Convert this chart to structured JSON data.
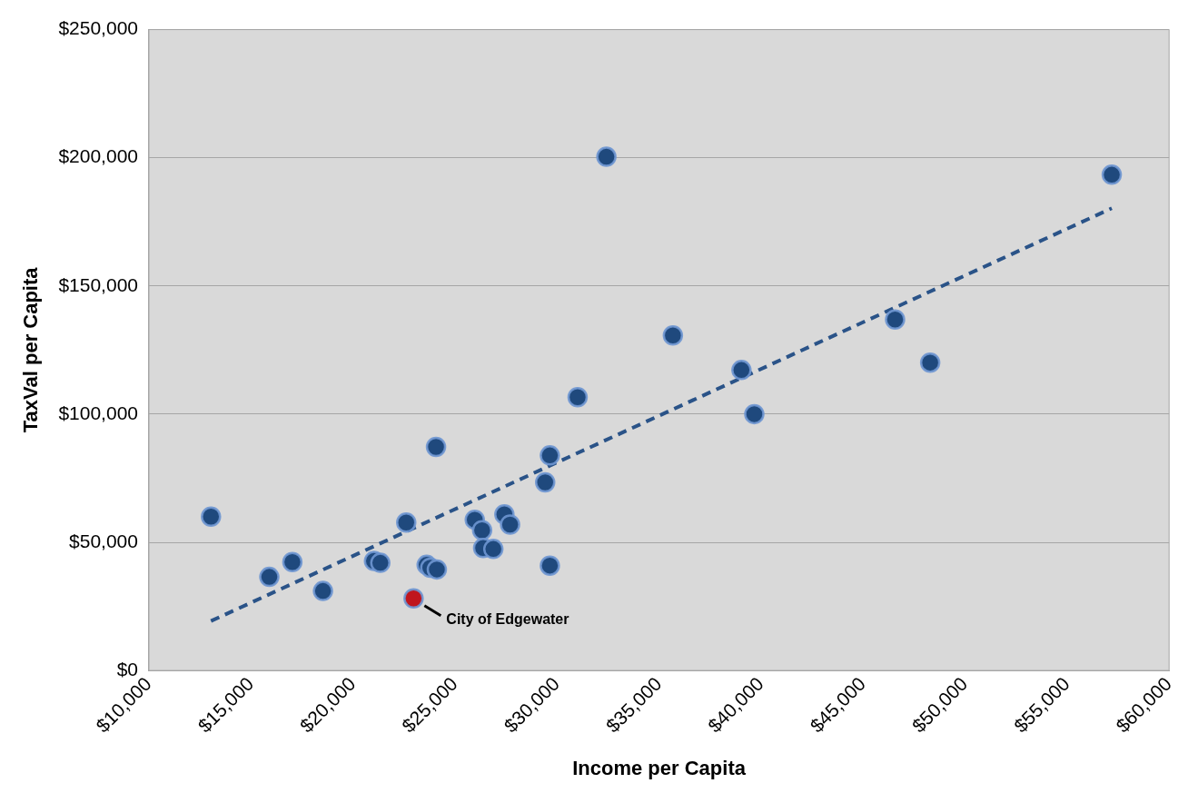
{
  "chart_data": {
    "type": "scatter",
    "xlabel": "Income per Capita",
    "ylabel": "TaxVal per Capita",
    "xlim": [
      10000,
      60000
    ],
    "xticks": [
      {
        "value": 10000,
        "label": "$10,000"
      },
      {
        "value": 15000,
        "label": "$15,000"
      },
      {
        "value": 20000,
        "label": "$20,000"
      },
      {
        "value": 25000,
        "label": "$25,000"
      },
      {
        "value": 30000,
        "label": "$30,000"
      },
      {
        "value": 35000,
        "label": "$35,000"
      },
      {
        "value": 40000,
        "label": "$40,000"
      },
      {
        "value": 45000,
        "label": "$45,000"
      },
      {
        "value": 50000,
        "label": "$50,000"
      },
      {
        "value": 55000,
        "label": "$55,000"
      },
      {
        "value": 60000,
        "label": "$60,000"
      }
    ],
    "ylim": [
      0,
      250000
    ],
    "yticks": [
      {
        "value": 0,
        "label": "$0"
      },
      {
        "value": 50000,
        "label": "$50,000"
      },
      {
        "value": 100000,
        "label": "$100,000"
      },
      {
        "value": 150000,
        "label": "$150,000"
      },
      {
        "value": 200000,
        "label": "$200,000"
      },
      {
        "value": 250000,
        "label": "$250,000"
      }
    ],
    "grid": "y",
    "legend": false,
    "marker": "circle",
    "series": [
      {
        "color": "#1f497d",
        "x": [
          13040,
          15900,
          17030,
          18530,
          21030,
          21340,
          22610,
          23610,
          23790,
          24110,
          24070,
          25970,
          26330,
          26380,
          26880,
          27420,
          27700,
          29420,
          29650,
          29650,
          31010,
          32420,
          35680,
          39040,
          39670,
          46570,
          48290,
          57190
        ],
        "values": [
          60000,
          36500,
          42300,
          31000,
          42700,
          42000,
          57700,
          41200,
          40100,
          39400,
          87200,
          58800,
          54700,
          47800,
          47400,
          60900,
          56900,
          73400,
          83900,
          40900,
          106600,
          200400,
          130700,
          117200,
          100000,
          136900,
          120100,
          193400
        ]
      },
      {
        "color": "#c0161d",
        "x": [
          22970
        ],
        "values": [
          28100
        ]
      },
      {
        "type": "line",
        "color": "#2a5388",
        "line_style": "dashed",
        "marker": "none",
        "x": [
          13040,
          57190
        ],
        "values": [
          19300,
          180300
        ]
      }
    ],
    "annotations": [
      {
        "text": "City of Edgewater",
        "x": 22970,
        "y": 28100
      }
    ]
  }
}
